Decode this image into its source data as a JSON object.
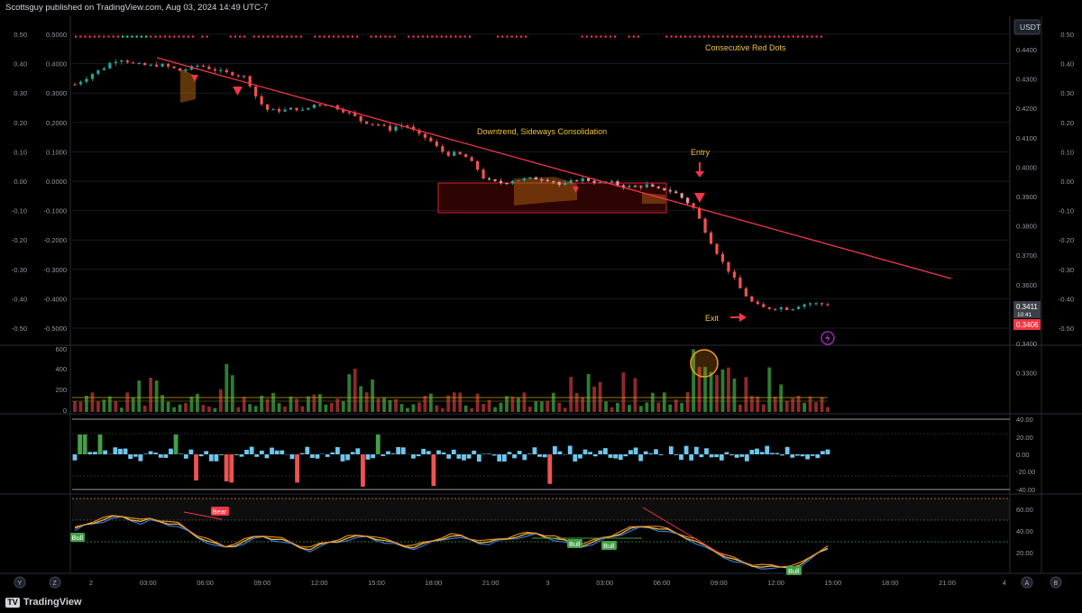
{
  "header": {
    "publisher": "Scottsguy published on TradingView.com, Aug 03, 2024 14:49 UTC-7"
  },
  "footer": {
    "brand": "TradingView"
  },
  "corner_buttons": {
    "left1": "Y",
    "left2": "Z",
    "right1": "A",
    "right2": "B"
  },
  "currency_label": "USDT",
  "price_badges": {
    "last": "0.3411",
    "countdown": "10:41",
    "other": "0.3406"
  },
  "colors": {
    "bull": "#26a69a",
    "bear": "#ef5350",
    "accent": "#f0c33c",
    "trendline": "#f23645",
    "volume_bull": "#2e7d32",
    "volume_bear": "#8e2a2a",
    "osc_pos": "#6fc7ee",
    "osc_bull": "#43a047",
    "osc_neg": "#ef5350"
  },
  "annotations": {
    "consecutive": "Consecutive Red Dots",
    "downtrend": "Downtrend, Sideways Consolidation",
    "entry": "Entry",
    "exit": "Exit",
    "bear": "Bear",
    "bull": "Bull"
  },
  "chart_data": [
    {
      "type": "candlestick",
      "title": "",
      "ylabel_right": "USDT",
      "ylim_right": [
        0.328,
        0.4475
      ],
      "right_ticks": [
        "0.4400",
        "0.4300",
        "0.4200",
        "0.4100",
        "0.4000",
        "0.3900",
        "0.3800",
        "0.3700",
        "0.3600",
        "0.3500",
        "0.3400",
        "0.3300"
      ],
      "left_ticks_outer": [
        "0.50",
        "0.40",
        "0.30",
        "0.20",
        "0.10",
        "0.00",
        "-0.10",
        "-0.20",
        "-0.30",
        "-0.40",
        "-0.50"
      ],
      "left_ticks_inner": [
        "0.5000",
        "0.4000",
        "0.3000",
        "0.2000",
        "0.1000",
        "0.0000",
        "-0.1000",
        "-0.2000",
        "-0.3000",
        "-0.4000",
        "-0.5000"
      ],
      "close_path": [
        0.4225,
        0.4245,
        0.4268,
        0.4285,
        0.4312,
        0.4318,
        0.4302,
        0.4296,
        0.4294,
        0.4297,
        0.4288,
        0.4275,
        0.4284,
        0.4296,
        0.4285,
        0.4275,
        0.4266,
        0.4262,
        0.4249,
        0.418,
        0.4132,
        0.4128,
        0.4129,
        0.4137,
        0.4126,
        0.415,
        0.4153,
        0.4145,
        0.413,
        0.4115,
        0.409,
        0.408,
        0.4075,
        0.4057,
        0.4075,
        0.4069,
        0.4038,
        0.4025,
        0.3992,
        0.3965,
        0.397,
        0.3956,
        0.3924,
        0.3873,
        0.3864,
        0.386,
        0.3871,
        0.3873,
        0.3877,
        0.3876,
        0.387,
        0.385,
        0.3864,
        0.3876,
        0.387,
        0.386,
        0.3865,
        0.3853,
        0.3846,
        0.3847,
        0.3852,
        0.3836,
        0.3837,
        0.3823,
        0.3798,
        0.3764,
        0.3692,
        0.3624,
        0.3565,
        0.3516,
        0.3459,
        0.3421,
        0.3399,
        0.3397,
        0.34,
        0.3393,
        0.3408,
        0.3416,
        0.3413,
        0.3411
      ],
      "trendline": [
        {
          "x": "02:20",
          "y": 0.4345
        },
        {
          "x": "23:59",
          "y": 0.3518
        }
      ],
      "consolidation_box": {
        "x0": "18:00",
        "x1": "07:15",
        "y0": 0.3898,
        "y1": 0.3792
      },
      "signal_dots_y": 0.5,
      "green_dot_groups": [
        [
          0.06,
          0.09
        ],
        [
          0.627,
          0.627
        ]
      ]
    },
    {
      "type": "bar",
      "title": "",
      "y_ticks": [
        "600",
        "400",
        "200",
        "0"
      ],
      "ylim": [
        0,
        600
      ],
      "note": "volume histogram with spike near 07:40",
      "spike": {
        "x": "07:40",
        "value": 560
      }
    },
    {
      "type": "bar",
      "title": "",
      "y_ticks": [
        "40.00",
        "20.00",
        "0.00",
        "-20.00",
        "-40.00"
      ],
      "ylim": [
        -40,
        40
      ]
    },
    {
      "type": "line",
      "title": "",
      "y_ticks": [
        "60.00",
        "40.00",
        "20.00"
      ],
      "ylim": [
        8,
        72
      ],
      "levels": [
        70,
        50,
        30
      ],
      "series": [
        {
          "values": [
            46,
            50,
            53,
            55,
            57,
            58,
            56,
            53,
            55,
            54,
            52,
            50,
            45,
            40,
            36,
            32,
            30,
            32,
            35,
            38,
            40,
            38,
            36,
            33,
            30,
            28,
            31,
            34,
            36,
            38,
            39,
            40,
            38,
            35,
            33,
            31,
            30,
            32,
            35,
            38,
            40,
            39,
            37,
            35,
            34,
            36,
            38,
            40,
            41,
            42,
            40,
            38,
            35,
            33,
            32,
            34,
            37,
            40,
            43,
            46,
            48,
            49,
            47,
            45,
            42,
            39,
            35,
            30,
            26,
            22,
            18,
            15,
            13,
            12,
            11,
            11,
            12,
            13,
            18,
            25,
            30
          ]
        }
      ]
    }
  ],
  "x_axis": {
    "labels": [
      "2",
      "03:00",
      "06:00",
      "09:00",
      "12:00",
      "15:00",
      "18:00",
      "21:00",
      "3",
      "03:00",
      "06:00",
      "09:00",
      "12:00",
      "15:00",
      "18:00",
      "21:00",
      "4"
    ]
  }
}
